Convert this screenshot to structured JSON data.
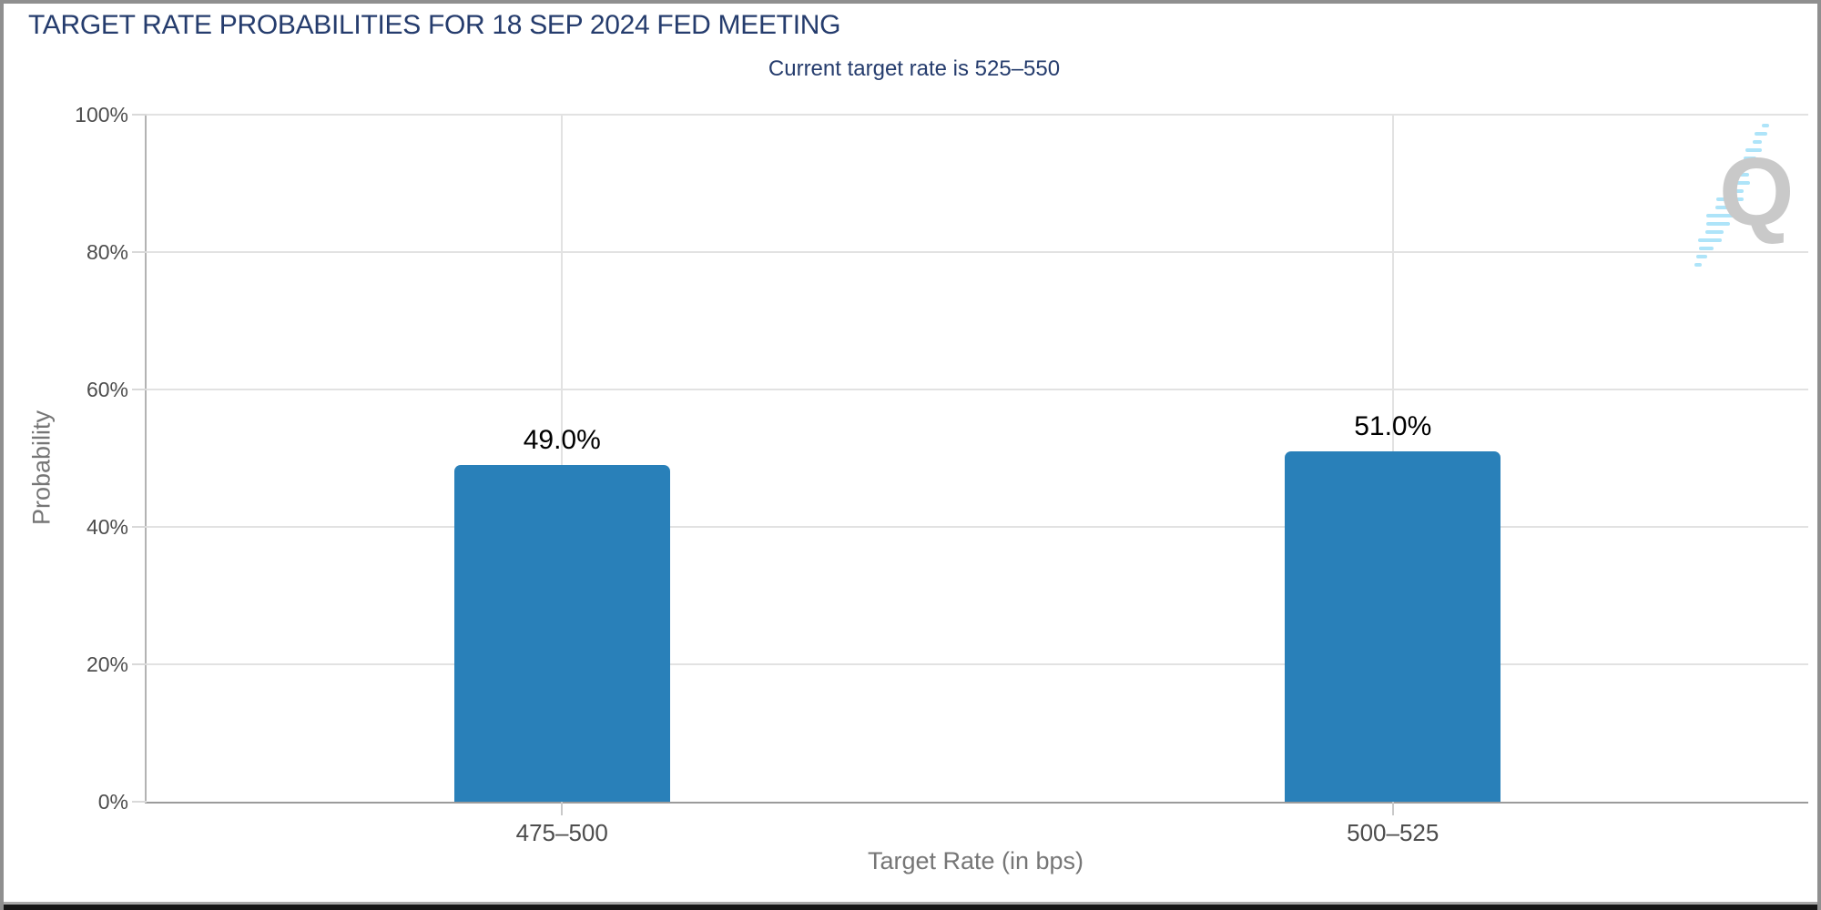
{
  "header": {
    "title": "TARGET RATE PROBABILITIES FOR 18 SEP 2024 FED MEETING",
    "subtitle": "Current target rate is 525–550"
  },
  "chart_data": {
    "type": "bar",
    "title": "TARGET RATE PROBABILITIES FOR 18 SEP 2024 FED MEETING",
    "subtitle": "Current target rate is 525–550",
    "categories": [
      "475–500",
      "500–525"
    ],
    "values": [
      49.0,
      51.0
    ],
    "value_labels": [
      "49.0%",
      "51.0%"
    ],
    "xlabel": "Target Rate (in bps)",
    "ylabel": "Probability",
    "ylim": [
      0,
      100
    ],
    "ytick_values": [
      0,
      20,
      40,
      60,
      80,
      100
    ],
    "ytick_labels": [
      "0%",
      "20%",
      "40%",
      "60%",
      "80%",
      "100%"
    ],
    "grid": true,
    "legend_position": "none",
    "bar_color": "#2980b9"
  },
  "watermark": {
    "logo_letter": "Q"
  },
  "colors": {
    "title_navy": "#253c6d",
    "bar_blue": "#2980b9",
    "grid_line": "#e2e2e2",
    "axis_line": "#a6a6a6",
    "tick_text": "#4d4d4d",
    "axis_title_text": "#767676",
    "value_label_text": "#000000",
    "frame_gray": "#8f8f8f",
    "logo_gray": "#c9c9c9",
    "logo_blue": "#aee4f9"
  }
}
